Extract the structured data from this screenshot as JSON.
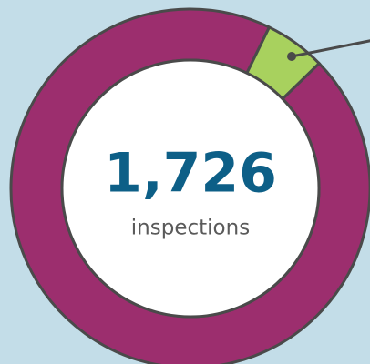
{
  "chart_data": {
    "type": "donut",
    "values": [
      5.5,
      94.5
    ],
    "colors": [
      "#a8d15e",
      "#9c2e6e"
    ],
    "center_text": "1,726",
    "center_caption": "inspections"
  }
}
